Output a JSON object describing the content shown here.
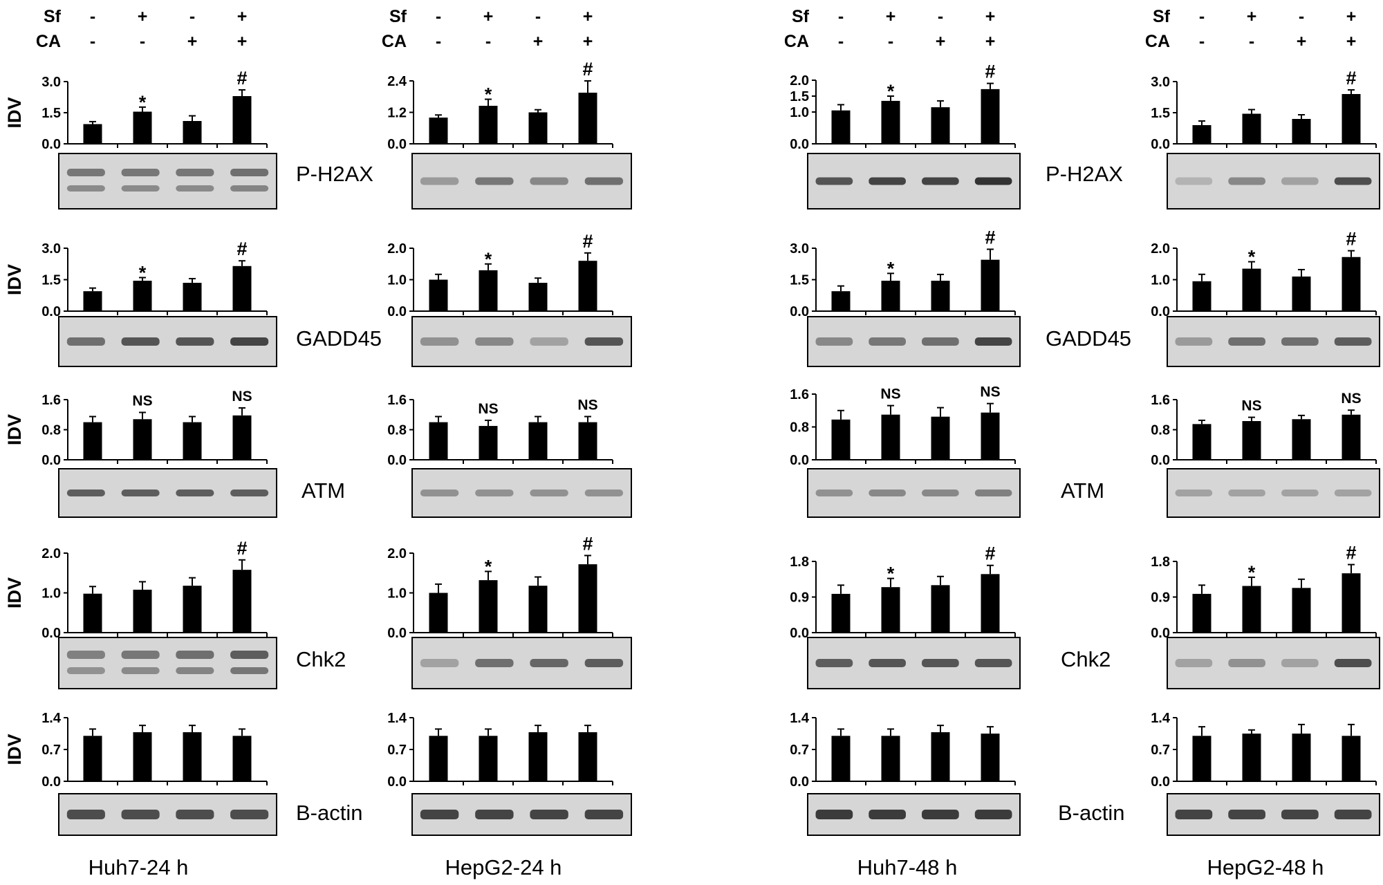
{
  "treatments": {
    "rows": [
      {
        "label": "Sf",
        "marks": [
          "-",
          "+",
          "-",
          "+"
        ]
      },
      {
        "label": "CA",
        "marks": [
          "-",
          "-",
          "+",
          "+"
        ]
      }
    ]
  },
  "y_axis_label": "IDV",
  "panels": [
    "Huh7-24 h",
    "HepG2-24 h",
    "Huh7-48 h",
    "HepG2-48 h"
  ],
  "proteins": [
    "P-H2AX",
    "GADD45",
    "ATM",
    "Chk2",
    "B-actin"
  ],
  "colors": {
    "bar": "#000000",
    "blot_bg": "#d6d6d6",
    "band": "#2a2a2a"
  },
  "chart_data": [
    {
      "type": "bar",
      "panel": "Huh7-24 h",
      "protein": "P-H2AX",
      "ylim": [
        0,
        3.0
      ],
      "ticks": [
        "0.0",
        "1.5",
        "3.0"
      ],
      "values": [
        0.95,
        1.55,
        1.1,
        2.3
      ],
      "errors": [
        0.12,
        0.22,
        0.25,
        0.3
      ],
      "annotations": [
        "",
        "*",
        "",
        "#"
      ]
    },
    {
      "type": "bar",
      "panel": "HepG2-24 h",
      "protein": "P-H2AX",
      "ylim": [
        0,
        2.4
      ],
      "ticks": [
        "0.0",
        "1.2",
        "2.4"
      ],
      "values": [
        1.0,
        1.45,
        1.2,
        1.95
      ],
      "errors": [
        0.1,
        0.25,
        0.1,
        0.45
      ],
      "annotations": [
        "",
        "*",
        "",
        "#"
      ]
    },
    {
      "type": "bar",
      "panel": "Huh7-48 h",
      "protein": "P-H2AX",
      "ylim": [
        0,
        2.0
      ],
      "ticks": [
        "0.0",
        "1.0",
        "1.5",
        "2.0"
      ],
      "values": [
        1.05,
        1.35,
        1.15,
        1.72
      ],
      "errors": [
        0.18,
        0.15,
        0.2,
        0.18
      ],
      "annotations": [
        "",
        "*",
        "",
        "#"
      ]
    },
    {
      "type": "bar",
      "panel": "HepG2-48 h",
      "protein": "P-H2AX",
      "ylim": [
        0,
        3.0
      ],
      "ticks": [
        "0.0",
        "1.5",
        "3.0"
      ],
      "values": [
        0.9,
        1.45,
        1.2,
        2.4
      ],
      "errors": [
        0.2,
        0.2,
        0.2,
        0.2
      ],
      "annotations": [
        "",
        "",
        "",
        "#"
      ]
    },
    {
      "type": "bar",
      "panel": "Huh7-24 h",
      "protein": "GADD45",
      "ylim": [
        0,
        3.0
      ],
      "ticks": [
        "0.0",
        "1.5",
        "3.0"
      ],
      "values": [
        0.95,
        1.45,
        1.35,
        2.15
      ],
      "errors": [
        0.15,
        0.15,
        0.2,
        0.25
      ],
      "annotations": [
        "",
        "*",
        "",
        "#"
      ]
    },
    {
      "type": "bar",
      "panel": "HepG2-24 h",
      "protein": "GADD45",
      "ylim": [
        0,
        2.0
      ],
      "ticks": [
        "0.0",
        "1.0",
        "2.0"
      ],
      "values": [
        1.0,
        1.3,
        0.9,
        1.6
      ],
      "errors": [
        0.17,
        0.2,
        0.15,
        0.25
      ],
      "annotations": [
        "",
        "*",
        "",
        "#"
      ]
    },
    {
      "type": "bar",
      "panel": "Huh7-48 h",
      "protein": "GADD45",
      "ylim": [
        0,
        3.0
      ],
      "ticks": [
        "0.0",
        "1.5",
        "3.0"
      ],
      "values": [
        0.95,
        1.45,
        1.45,
        2.45
      ],
      "errors": [
        0.25,
        0.35,
        0.3,
        0.5
      ],
      "annotations": [
        "",
        "*",
        "",
        "#"
      ]
    },
    {
      "type": "bar",
      "panel": "HepG2-48 h",
      "protein": "GADD45",
      "ylim": [
        0,
        2.0
      ],
      "ticks": [
        "0.0",
        "1.0",
        "2.0"
      ],
      "values": [
        0.95,
        1.35,
        1.1,
        1.72
      ],
      "errors": [
        0.22,
        0.22,
        0.22,
        0.2
      ],
      "annotations": [
        "",
        "*",
        "",
        "#"
      ]
    },
    {
      "type": "bar",
      "panel": "Huh7-24 h",
      "protein": "ATM",
      "ylim": [
        0,
        1.6
      ],
      "ticks": [
        "0.0",
        "0.8",
        "1.6"
      ],
      "values": [
        1.0,
        1.08,
        1.0,
        1.18
      ],
      "errors": [
        0.15,
        0.18,
        0.15,
        0.2
      ],
      "annotations": [
        "",
        "NS",
        "",
        "NS"
      ]
    },
    {
      "type": "bar",
      "panel": "HepG2-24 h",
      "protein": "ATM",
      "ylim": [
        0,
        1.6
      ],
      "ticks": [
        "0.0",
        "0.8",
        "1.6"
      ],
      "values": [
        1.0,
        0.9,
        1.0,
        1.0
      ],
      "errors": [
        0.15,
        0.15,
        0.15,
        0.15
      ],
      "annotations": [
        "",
        "NS",
        "",
        "NS"
      ]
    },
    {
      "type": "bar",
      "panel": "Huh7-48 h",
      "protein": "ATM",
      "ylim": [
        0,
        1.6
      ],
      "ticks": [
        "0.0",
        "0.8",
        "1.6"
      ],
      "values": [
        0.98,
        1.1,
        1.05,
        1.15
      ],
      "errors": [
        0.22,
        0.22,
        0.22,
        0.22
      ],
      "annotations": [
        "",
        "NS",
        "",
        "NS"
      ]
    },
    {
      "type": "bar",
      "panel": "HepG2-48 h",
      "protein": "ATM",
      "ylim": [
        0,
        1.6
      ],
      "ticks": [
        "0.0",
        "0.8",
        "1.6"
      ],
      "values": [
        0.95,
        1.03,
        1.08,
        1.2
      ],
      "errors": [
        0.1,
        0.1,
        0.1,
        0.12
      ],
      "annotations": [
        "",
        "NS",
        "",
        "NS"
      ]
    },
    {
      "type": "bar",
      "panel": "Huh7-24 h",
      "protein": "Chk2",
      "ylim": [
        0,
        2.0
      ],
      "ticks": [
        "0.0",
        "1.0",
        "2.0"
      ],
      "values": [
        0.98,
        1.08,
        1.18,
        1.58
      ],
      "errors": [
        0.18,
        0.2,
        0.2,
        0.25
      ],
      "annotations": [
        "",
        "",
        "",
        "#"
      ]
    },
    {
      "type": "bar",
      "panel": "HepG2-24 h",
      "protein": "Chk2",
      "ylim": [
        0,
        2.0
      ],
      "ticks": [
        "0.0",
        "1.0",
        "2.0"
      ],
      "values": [
        1.0,
        1.32,
        1.18,
        1.72
      ],
      "errors": [
        0.22,
        0.22,
        0.22,
        0.22
      ],
      "annotations": [
        "",
        "*",
        "",
        "#"
      ]
    },
    {
      "type": "bar",
      "panel": "Huh7-48 h",
      "protein": "Chk2",
      "ylim": [
        0,
        1.8
      ],
      "ticks": [
        "0.0",
        "0.9",
        "1.8"
      ],
      "values": [
        0.98,
        1.15,
        1.2,
        1.48
      ],
      "errors": [
        0.22,
        0.22,
        0.22,
        0.22
      ],
      "annotations": [
        "",
        "*",
        "",
        "#"
      ]
    },
    {
      "type": "bar",
      "panel": "HepG2-48 h",
      "protein": "Chk2",
      "ylim": [
        0,
        1.8
      ],
      "ticks": [
        "0.0",
        "0.9",
        "1.8"
      ],
      "values": [
        0.98,
        1.18,
        1.13,
        1.5
      ],
      "errors": [
        0.22,
        0.22,
        0.22,
        0.22
      ],
      "annotations": [
        "",
        "*",
        "",
        "#"
      ]
    },
    {
      "type": "bar",
      "panel": "Huh7-24 h",
      "protein": "B-actin",
      "ylim": [
        0,
        1.4
      ],
      "ticks": [
        "0.0",
        "0.7",
        "1.4"
      ],
      "values": [
        1.0,
        1.08,
        1.08,
        1.0
      ],
      "errors": [
        0.15,
        0.15,
        0.15,
        0.15
      ],
      "annotations": [
        "",
        "",
        "",
        ""
      ]
    },
    {
      "type": "bar",
      "panel": "HepG2-24 h",
      "protein": "B-actin",
      "ylim": [
        0,
        1.4
      ],
      "ticks": [
        "0.0",
        "0.7",
        "1.4"
      ],
      "values": [
        1.0,
        1.0,
        1.08,
        1.08
      ],
      "errors": [
        0.15,
        0.15,
        0.15,
        0.15
      ],
      "annotations": [
        "",
        "",
        "",
        ""
      ]
    },
    {
      "type": "bar",
      "panel": "Huh7-48 h",
      "protein": "B-actin",
      "ylim": [
        0,
        1.4
      ],
      "ticks": [
        "0.0",
        "0.7",
        "1.4"
      ],
      "values": [
        1.0,
        1.0,
        1.08,
        1.05
      ],
      "errors": [
        0.15,
        0.15,
        0.15,
        0.15
      ],
      "annotations": [
        "",
        "",
        "",
        ""
      ]
    },
    {
      "type": "bar",
      "panel": "HepG2-48 h",
      "protein": "B-actin",
      "ylim": [
        0,
        1.4
      ],
      "ticks": [
        "0.0",
        "0.7",
        "1.4"
      ],
      "values": [
        1.0,
        1.05,
        1.05,
        1.0
      ],
      "errors": [
        0.2,
        0.08,
        0.2,
        0.25
      ],
      "annotations": [
        "",
        "",
        "",
        ""
      ]
    }
  ]
}
